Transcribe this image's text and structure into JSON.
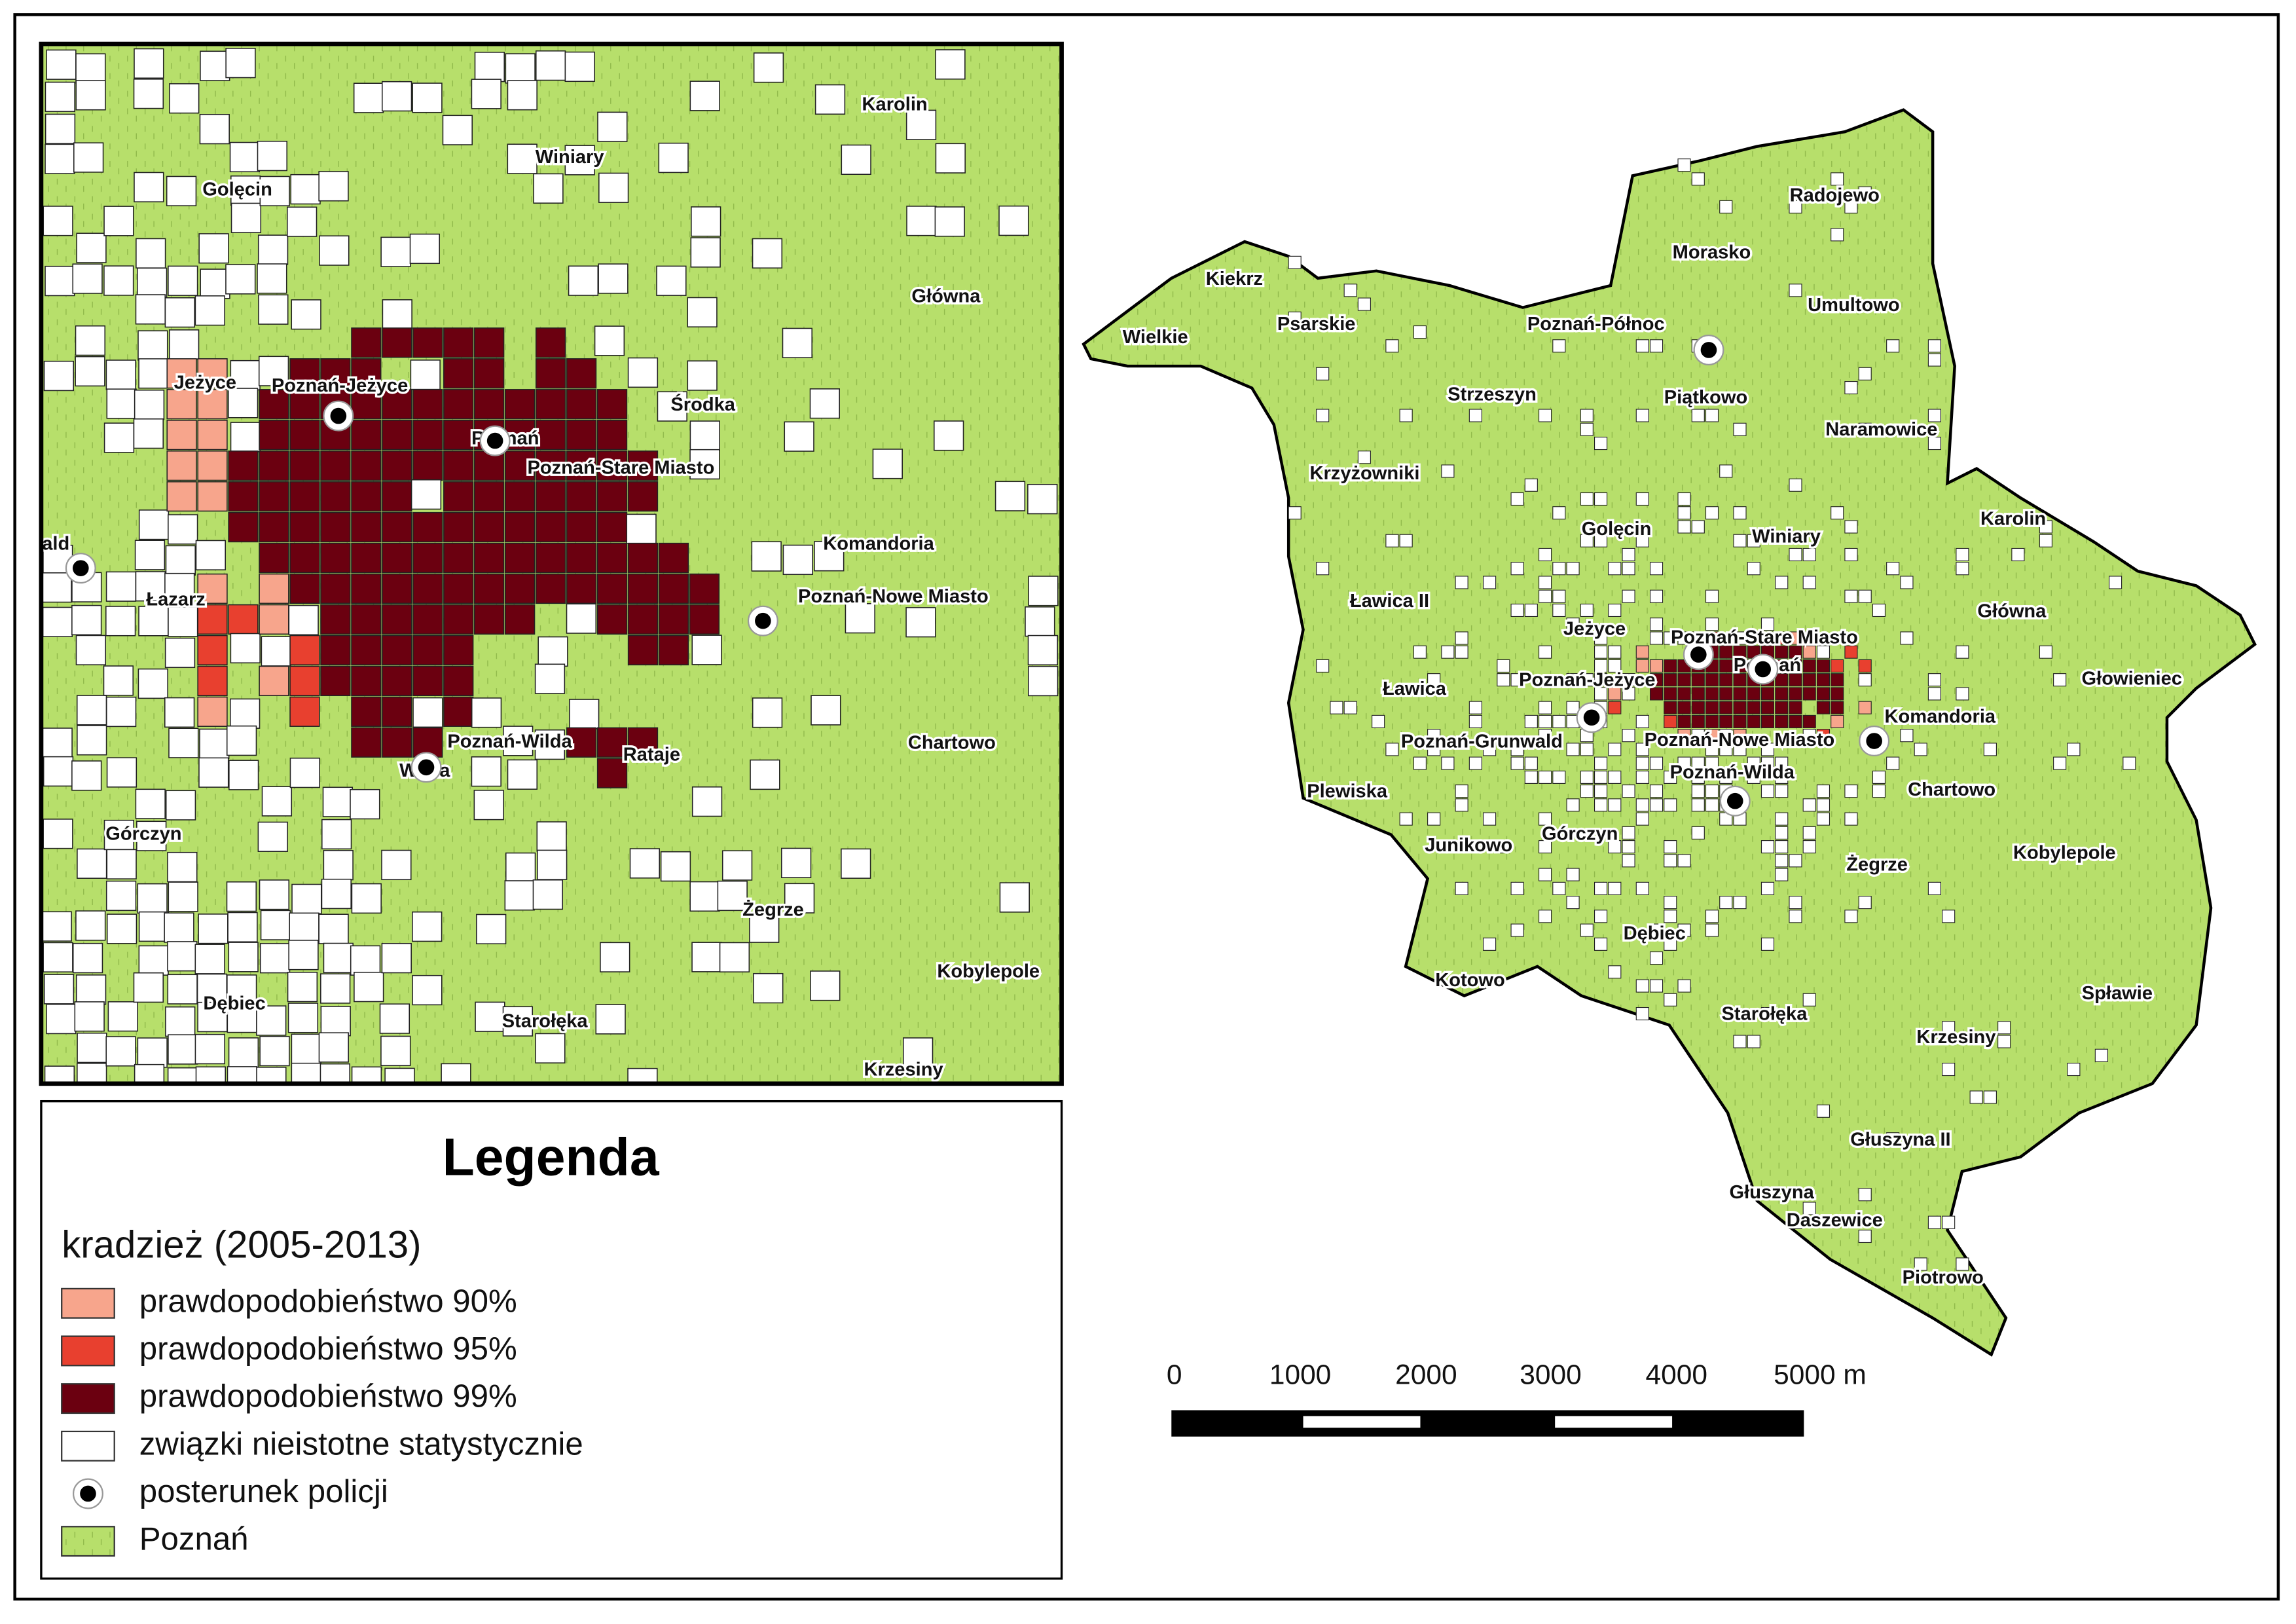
{
  "inset": {
    "labels": [
      "Karolin",
      "Winiary",
      "Golęcin",
      "Główna",
      "Jeżyce",
      "Środka",
      "Poznań",
      "Komandoria",
      "ald",
      "Łazarz",
      "Chartowo",
      "Rataje",
      "Wilda",
      "Górczyn",
      "Żegrze",
      "Kobylepole",
      "Dębiec",
      "Starołęka",
      "Krzesiny"
    ],
    "stations": [
      "Poznań-Jeżyce",
      "Poznań-Stare Miasto",
      "Poznań-Nowe Miasto",
      "Poznań-Wilda"
    ]
  },
  "main_map": {
    "labels": [
      "Kiekrz",
      "Wielkie",
      "Psarskie",
      "Morasko",
      "Radojewo",
      "Umultowo",
      "Strzeszyn",
      "Piątkowo",
      "Naramowice",
      "Krzyżowniki",
      "Golęcin",
      "Winiary",
      "Karolin",
      "Ławica II",
      "Główna",
      "Jeżyce",
      "Ławica",
      "Głowieniec",
      "Komandoria",
      "Poznań",
      "Chartowo",
      "Plewiska",
      "Junikowo",
      "Górczyn",
      "Kobylepole",
      "Żegrze",
      "Dębiec",
      "Kotowo",
      "Spławie",
      "Starołęka",
      "Krzesiny",
      "Głuszyna II",
      "Głuszyna",
      "Daszewice",
      "Piotrowo"
    ],
    "stations": [
      "Poznań-Północ",
      "Poznań-Stare Miasto",
      "Poznań-Jeżyce",
      "Poznań-Grunwald",
      "Poznań-Nowe Miasto",
      "Poznań-Wilda"
    ]
  },
  "legend": {
    "title": "Legenda",
    "subtitle": "kradzież (2005-2013)",
    "items": [
      "prawdopodobieństwo 90%",
      "prawdopodobieństwo 95%",
      "prawdopodobieństwo 99%",
      "związki nieistotne statystycznie",
      "posterunek policji",
      "Poznań"
    ]
  },
  "scale_bar": {
    "labels": [
      "0",
      "1000",
      "2000",
      "3000",
      "4000",
      "5000 m"
    ]
  }
}
